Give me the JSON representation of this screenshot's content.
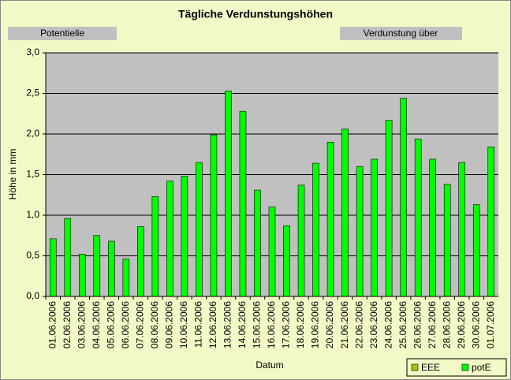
{
  "chart_data": {
    "type": "bar",
    "title": "Tägliche Verdunstungshöhen",
    "annotations": [
      "Potentielle",
      "Verdunstung über"
    ],
    "y_label": "Höhe in mm",
    "x_label": "Datum",
    "categories": [
      "01.06.2006",
      "02.06.2006",
      "03.06.2006",
      "04.06.2006",
      "05.06.2006",
      "06.06.2006",
      "07.06.2006",
      "08.06.2006",
      "09.06.2006",
      "10.06.2006",
      "11.06.2006",
      "12.06.2006",
      "13.06.2006",
      "14.06.2006",
      "15.06.2006",
      "16.06.2006",
      "17.06.2006",
      "18.06.2006",
      "19.06.2006",
      "20.06.2006",
      "21.06.2006",
      "22.06.2006",
      "23.06.2006",
      "24.06.2006",
      "25.06.2006",
      "26.06.2006",
      "27.06.2006",
      "28.06.2006",
      "29.06.2006",
      "30.06.2006",
      "01.07.2006"
    ],
    "series": [
      {
        "name": "EEE",
        "color": "#99cc00",
        "values": [
          null,
          null,
          null,
          null,
          null,
          null,
          null,
          null,
          null,
          null,
          null,
          null,
          null,
          null,
          null,
          null,
          null,
          null,
          null,
          null,
          null,
          null,
          null,
          null,
          null,
          null,
          null,
          null,
          null,
          null,
          null
        ]
      },
      {
        "name": "potE",
        "color": "#00ff00",
        "values": [
          0.71,
          0.96,
          0.52,
          0.75,
          0.68,
          0.46,
          0.86,
          1.23,
          1.42,
          1.48,
          1.65,
          1.99,
          2.53,
          2.28,
          1.31,
          1.1,
          0.87,
          1.37,
          1.64,
          1.9,
          2.06,
          1.6,
          1.69,
          2.17,
          2.44,
          1.94,
          1.69,
          1.38,
          1.65,
          1.13,
          1.84
        ]
      }
    ],
    "ylim": [
      0,
      3
    ],
    "yticks": [
      {
        "value": 0,
        "label": "0,0"
      },
      {
        "value": 0.5,
        "label": "0,5"
      },
      {
        "value": 1,
        "label": "1,0"
      },
      {
        "value": 1.5,
        "label": "1,5"
      },
      {
        "value": 2,
        "label": "2,0"
      },
      {
        "value": 2.5,
        "label": "2,5"
      },
      {
        "value": 3,
        "label": "3,0"
      }
    ],
    "grid": true,
    "legend": "bottom-right"
  }
}
